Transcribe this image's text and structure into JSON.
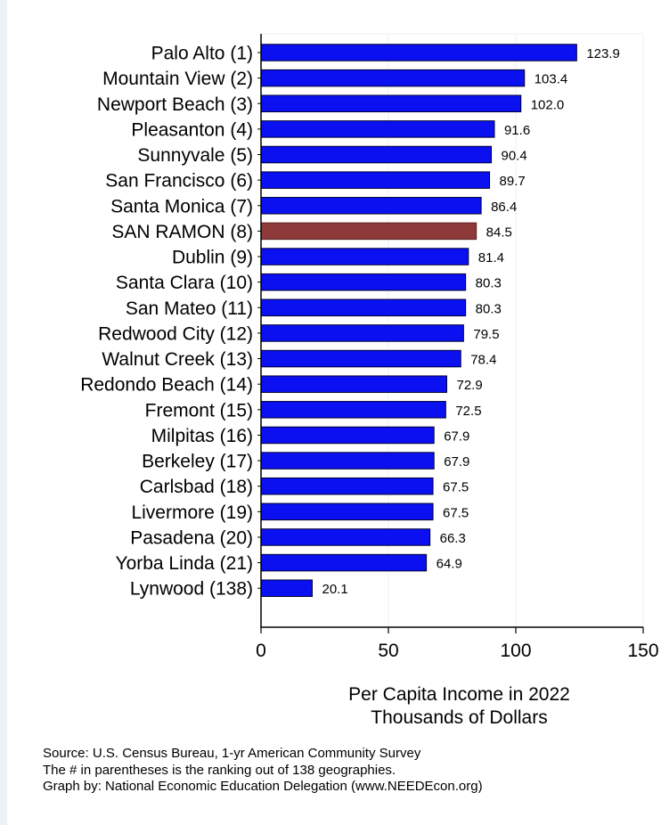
{
  "chart_data": {
    "type": "bar",
    "orientation": "horizontal",
    "categories": [
      "Palo Alto  (1)",
      "Mountain View  (2)",
      "Newport Beach  (3)",
      "Pleasanton  (4)",
      "Sunnyvale  (5)",
      "San Francisco  (6)",
      "Santa Monica  (7)",
      "SAN RAMON  (8)",
      "Dublin  (9)",
      "Santa Clara (10)",
      "San Mateo (11)",
      "Redwood City (12)",
      "Walnut Creek (13)",
      "Redondo Beach (14)",
      "Fremont (15)",
      "Milpitas (16)",
      "Berkeley (17)",
      "Carlsbad (18)",
      "Livermore (19)",
      "Pasadena (20)",
      "Yorba Linda (21)",
      "Lynwood (138)"
    ],
    "values": [
      123.9,
      103.4,
      102.0,
      91.6,
      90.4,
      89.7,
      86.4,
      84.5,
      81.4,
      80.3,
      80.3,
      79.5,
      78.4,
      72.9,
      72.5,
      67.9,
      67.9,
      67.5,
      67.5,
      66.3,
      64.9,
      20.1
    ],
    "value_labels": [
      "123.9",
      "103.4",
      "102.0",
      "91.6",
      "90.4",
      "89.7",
      "86.4",
      "84.5",
      "81.4",
      "80.3",
      "80.3",
      "79.5",
      "78.4",
      "72.9",
      "72.5",
      "67.9",
      "67.9",
      "67.5",
      "67.5",
      "66.3",
      "64.9",
      "20.1"
    ],
    "highlight_index": 7,
    "bar_color": "#0a10f0",
    "highlight_color": "#8e3a3a",
    "xlim": [
      0,
      150
    ],
    "xticks": [
      0,
      50,
      100,
      150
    ],
    "xlabel": [
      "Per Capita Income in 2022",
      "Thousands of Dollars"
    ],
    "grid": "vertical",
    "legend": "none"
  },
  "notes": {
    "lines": [
      "Source: U.S. Census Bureau, 1-yr American Community Survey",
      "The # in parentheses is the ranking out of 138 geographies.",
      "Graph by: National Economic Education Delegation (www.NEEDEcon.org)"
    ]
  }
}
